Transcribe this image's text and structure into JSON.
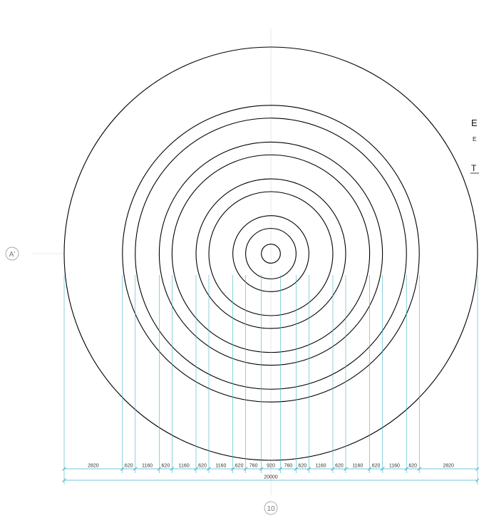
{
  "drawing": {
    "grid_tags": {
      "row": "A'",
      "column": "10"
    },
    "side_labels": [
      "E",
      "E",
      "T"
    ],
    "colors": {
      "linework": "#000000",
      "dimension": "#3fb4c8",
      "axis": "#c8c8c8",
      "tag": "#8a8a8a"
    },
    "total_span": 20000,
    "total_label": "20000",
    "segments": [
      {
        "value": 2820,
        "label": "2820"
      },
      {
        "value": 620,
        "label": "620"
      },
      {
        "value": 1160,
        "label": "1160"
      },
      {
        "value": 620,
        "label": "620"
      },
      {
        "value": 1160,
        "label": "1160"
      },
      {
        "value": 620,
        "label": "620"
      },
      {
        "value": 1160,
        "label": "1160"
      },
      {
        "value": 620,
        "label": "620"
      },
      {
        "value": 760,
        "label": "760"
      },
      {
        "value": 920,
        "label": "920"
      },
      {
        "value": 760,
        "label": "760"
      },
      {
        "value": 620,
        "label": "620"
      },
      {
        "value": 1160,
        "label": "1160"
      },
      {
        "value": 620,
        "label": "620"
      },
      {
        "value": 1160,
        "label": "1160"
      },
      {
        "value": 620,
        "label": "620"
      },
      {
        "value": 1160,
        "label": "1160"
      },
      {
        "value": 620,
        "label": "620"
      },
      {
        "value": 2820,
        "label": "2820"
      }
    ],
    "circle_diameters": [
      20000,
      14360,
      13120,
      10800,
      9560,
      7240,
      6000,
      3680,
      2440,
      920
    ]
  }
}
